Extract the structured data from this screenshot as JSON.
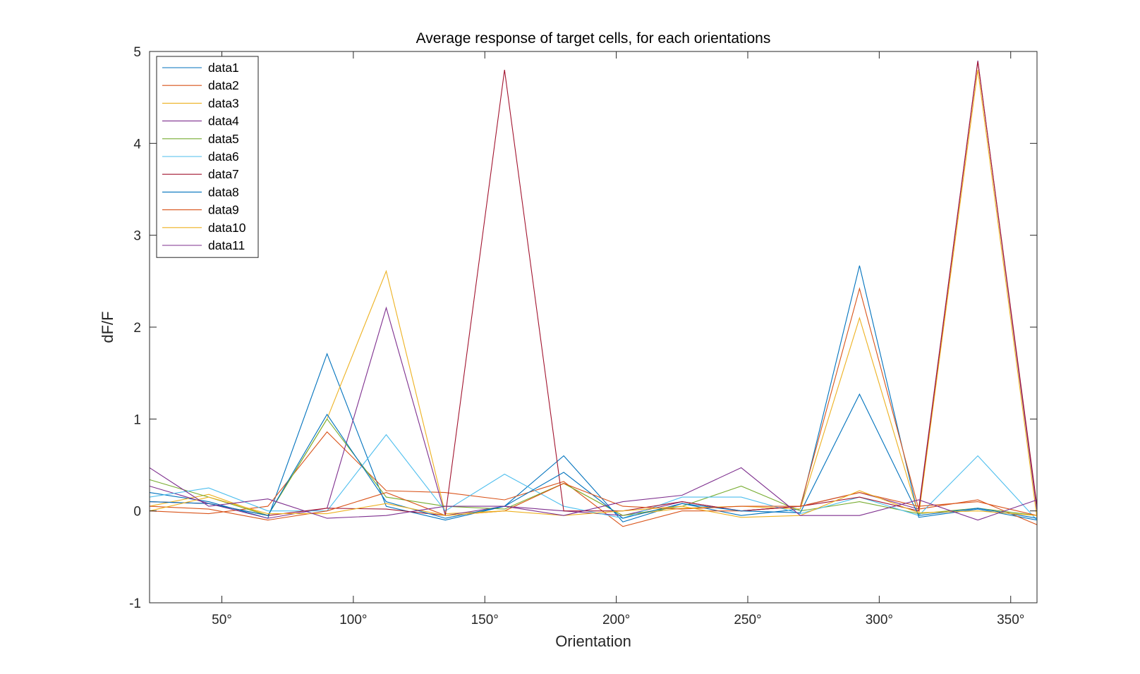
{
  "chart_data": {
    "type": "line",
    "title": "Average response of target cells, for each orientations",
    "xlabel": "Orientation",
    "ylabel": "dF/F",
    "xlim": [
      22.5,
      360
    ],
    "ylim": [
      -1,
      5
    ],
    "xticks": [
      50,
      100,
      150,
      200,
      250,
      300,
      350
    ],
    "xtick_labels": [
      "50°",
      "100°",
      "150°",
      "200°",
      "250°",
      "300°",
      "350°"
    ],
    "yticks": [
      -1,
      0,
      1,
      2,
      3,
      4,
      5
    ],
    "ytick_labels": [
      "-1",
      "0",
      "1",
      "2",
      "3",
      "4",
      "5"
    ],
    "legend_position": "top-left",
    "grid": false,
    "x": [
      22.5,
      45,
      67.5,
      90,
      112.5,
      135,
      157.5,
      180,
      202.5,
      225,
      247.5,
      270,
      292.5,
      315,
      337.5,
      360
    ],
    "series": [
      {
        "name": "data1",
        "color": "#0072BD",
        "values": [
          0.2,
          0.1,
          -0.08,
          1.71,
          0.05,
          -0.1,
          0.05,
          0.6,
          -0.12,
          0.08,
          -0.05,
          0.02,
          2.67,
          -0.07,
          0.02,
          -0.1
        ]
      },
      {
        "name": "data2",
        "color": "#D95319",
        "values": [
          0.0,
          -0.03,
          0.05,
          0.86,
          0.22,
          0.2,
          0.12,
          0.32,
          -0.17,
          0.0,
          0.0,
          0.05,
          2.42,
          0.02,
          0.12,
          -0.15
        ]
      },
      {
        "name": "data3",
        "color": "#EDB120",
        "values": [
          0.05,
          0.18,
          -0.05,
          1.0,
          2.61,
          -0.03,
          0.0,
          0.3,
          -0.05,
          0.03,
          0.05,
          0.02,
          2.1,
          -0.05,
          4.8,
          -0.08
        ]
      },
      {
        "name": "data4",
        "color": "#7E2F8E",
        "values": [
          0.27,
          0.08,
          -0.08,
          0.03,
          2.21,
          -0.05,
          0.05,
          0.0,
          -0.05,
          0.1,
          0.0,
          0.05,
          0.2,
          0.02,
          4.9,
          0.0
        ]
      },
      {
        "name": "data5",
        "color": "#77AC30",
        "values": [
          0.34,
          0.15,
          -0.05,
          1.0,
          0.15,
          0.05,
          0.02,
          0.3,
          -0.05,
          0.05,
          0.27,
          0.0,
          0.1,
          -0.03,
          0.03,
          -0.05
        ]
      },
      {
        "name": "data6",
        "color": "#4DBEEE",
        "values": [
          0.15,
          0.25,
          0.0,
          0.0,
          0.83,
          0.0,
          0.4,
          0.05,
          -0.08,
          0.15,
          0.15,
          -0.03,
          0.15,
          -0.05,
          0.6,
          -0.1
        ]
      },
      {
        "name": "data7",
        "color": "#A2142F",
        "values": [
          0.1,
          0.08,
          -0.05,
          0.03,
          0.02,
          -0.05,
          4.8,
          0.0,
          0.0,
          0.1,
          0.0,
          0.05,
          0.15,
          0.0,
          4.89,
          0.05
        ]
      },
      {
        "name": "data8",
        "color": "#0072BD",
        "values": [
          0.1,
          0.08,
          -0.05,
          1.05,
          0.1,
          -0.08,
          0.05,
          0.42,
          -0.08,
          0.08,
          0.0,
          -0.02,
          1.27,
          -0.05,
          0.03,
          -0.08
        ]
      },
      {
        "name": "data9",
        "color": "#D95319",
        "values": [
          0.05,
          0.02,
          -0.1,
          0.0,
          0.2,
          -0.05,
          0.0,
          0.3,
          0.05,
          0.02,
          0.05,
          0.05,
          0.2,
          0.05,
          0.1,
          -0.05
        ]
      },
      {
        "name": "data10",
        "color": "#EDB120",
        "values": [
          0.0,
          0.15,
          -0.03,
          -0.03,
          0.08,
          -0.05,
          0.0,
          -0.05,
          0.0,
          0.05,
          -0.07,
          -0.05,
          0.22,
          -0.02,
          0.0,
          -0.05
        ]
      },
      {
        "name": "data11",
        "color": "#7E2F8E",
        "values": [
          0.47,
          0.05,
          0.13,
          -0.08,
          -0.05,
          0.05,
          0.05,
          -0.05,
          0.1,
          0.17,
          0.47,
          -0.05,
          -0.05,
          0.12,
          -0.1,
          0.12
        ]
      }
    ]
  }
}
